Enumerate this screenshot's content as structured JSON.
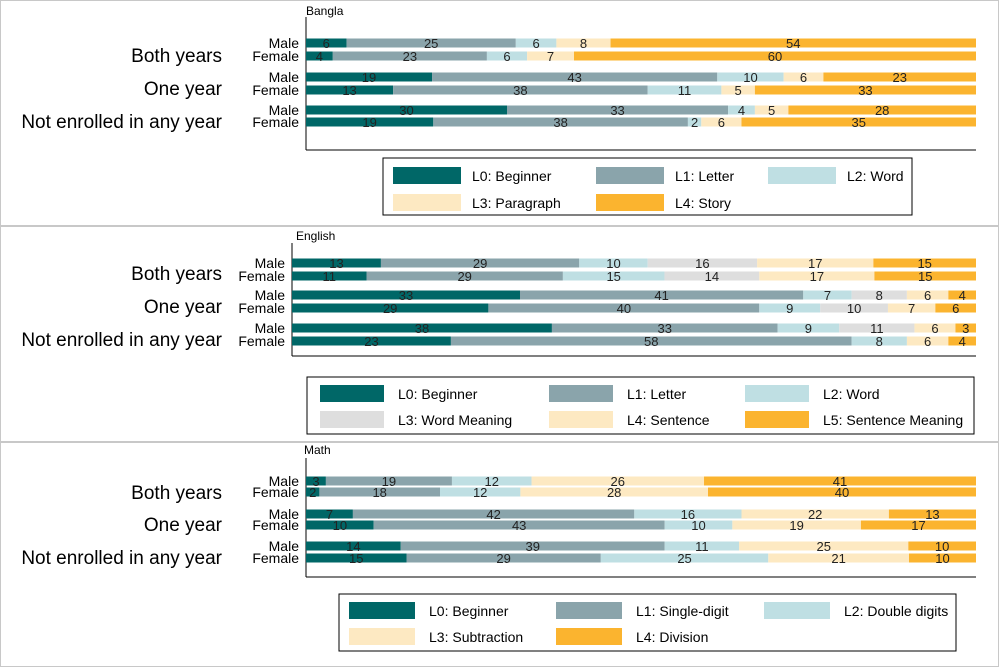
{
  "colors": {
    "dark_teal": "#006767",
    "grey_teal": "#8aa4ab",
    "light_blue": "#bfdfe3",
    "light_grey": "#dedede",
    "cream": "#fde9c2",
    "orange": "#fbb42f"
  },
  "chart_data": [
    {
      "type": "bar",
      "orientation": "horizontal",
      "stacked": true,
      "percent": true,
      "title": "Bangla",
      "groups": [
        "Both years",
        "One year",
        "Not enrolled in any year"
      ],
      "genders": [
        "Male",
        "Female"
      ],
      "rows": [
        {
          "group": "Both years",
          "gender": "Male",
          "values": [
            6,
            25,
            6,
            8,
            54
          ]
        },
        {
          "group": "Both years",
          "gender": "Female",
          "values": [
            4,
            23,
            6,
            7,
            60
          ]
        },
        {
          "group": "One year",
          "gender": "Male",
          "values": [
            19,
            43,
            10,
            6,
            23
          ]
        },
        {
          "group": "One year",
          "gender": "Female",
          "values": [
            13,
            38,
            11,
            5,
            33
          ]
        },
        {
          "group": "Not enrolled in any year",
          "gender": "Male",
          "values": [
            30,
            33,
            4,
            5,
            28
          ]
        },
        {
          "group": "Not enrolled in any year",
          "gender": "Female",
          "values": [
            19,
            38,
            2,
            6,
            35
          ]
        }
      ],
      "series": [
        {
          "name": "L0: Beginner",
          "color": "#006767"
        },
        {
          "name": "L1: Letter",
          "color": "#8aa4ab"
        },
        {
          "name": "L2: Word",
          "color": "#bfdfe3"
        },
        {
          "name": "L3: Paragraph",
          "color": "#fde9c2"
        },
        {
          "name": "L4: Story",
          "color": "#fbb42f"
        }
      ],
      "legend_columns": 3,
      "legend_placement": "bottom"
    },
    {
      "type": "bar",
      "orientation": "horizontal",
      "stacked": true,
      "percent": true,
      "title": "English",
      "groups": [
        "Both years",
        "One year",
        "Not enrolled in any year"
      ],
      "genders": [
        "Male",
        "Female"
      ],
      "rows": [
        {
          "group": "Both years",
          "gender": "Male",
          "values": [
            13,
            29,
            10,
            16,
            17,
            15
          ]
        },
        {
          "group": "Both years",
          "gender": "Female",
          "values": [
            11,
            29,
            15,
            14,
            17,
            15
          ]
        },
        {
          "group": "One year",
          "gender": "Male",
          "values": [
            33,
            41,
            7,
            8,
            6,
            4
          ]
        },
        {
          "group": "One year",
          "gender": "Female",
          "values": [
            29,
            40,
            9,
            10,
            7,
            6
          ]
        },
        {
          "group": "Not enrolled in any year",
          "gender": "Male",
          "values": [
            38,
            33,
            9,
            11,
            6,
            3
          ]
        },
        {
          "group": "Not enrolled in any year",
          "gender": "Female",
          "values": [
            23,
            58,
            8,
            6,
            4
          ]
        }
      ],
      "female_not_enrolled_series_index": [
        0,
        1,
        2,
        4,
        5
      ],
      "series": [
        {
          "name": "L0: Beginner",
          "color": "#006767"
        },
        {
          "name": "L1: Letter",
          "color": "#8aa4ab"
        },
        {
          "name": "L2: Word",
          "color": "#bfdfe3"
        },
        {
          "name": "L3: Word Meaning",
          "color": "#dedede"
        },
        {
          "name": "L4: Sentence",
          "color": "#fde9c2"
        },
        {
          "name": "L5: Sentence Meaning",
          "color": "#fbb42f"
        }
      ],
      "legend_columns": 3,
      "legend_placement": "bottom"
    },
    {
      "type": "bar",
      "orientation": "horizontal",
      "stacked": true,
      "percent": true,
      "title": "Math",
      "groups": [
        "Both years",
        "One year",
        "Not enrolled in any year"
      ],
      "genders": [
        "Male",
        "Female"
      ],
      "rows": [
        {
          "group": "Both years",
          "gender": "Male",
          "values": [
            3,
            19,
            12,
            26,
            41
          ]
        },
        {
          "group": "Both years",
          "gender": "Female",
          "values": [
            2,
            18,
            12,
            28,
            40
          ]
        },
        {
          "group": "One year",
          "gender": "Male",
          "values": [
            7,
            42,
            16,
            22,
            13
          ]
        },
        {
          "group": "One year",
          "gender": "Female",
          "values": [
            10,
            43,
            10,
            19,
            17
          ]
        },
        {
          "group": "Not enrolled in any year",
          "gender": "Male",
          "values": [
            14,
            39,
            11,
            25,
            10
          ]
        },
        {
          "group": "Not enrolled in any year",
          "gender": "Female",
          "values": [
            15,
            29,
            25,
            21,
            10
          ]
        }
      ],
      "series": [
        {
          "name": "L0: Beginner",
          "color": "#006767"
        },
        {
          "name": "L1: Single-digit",
          "color": "#8aa4ab"
        },
        {
          "name": "L2: Double digits",
          "color": "#bfdfe3"
        },
        {
          "name": "L3: Subtraction",
          "color": "#fde9c2"
        },
        {
          "name": "L4: Division",
          "color": "#fbb42f"
        }
      ],
      "legend_columns": 3,
      "legend_placement": "bottom"
    }
  ]
}
